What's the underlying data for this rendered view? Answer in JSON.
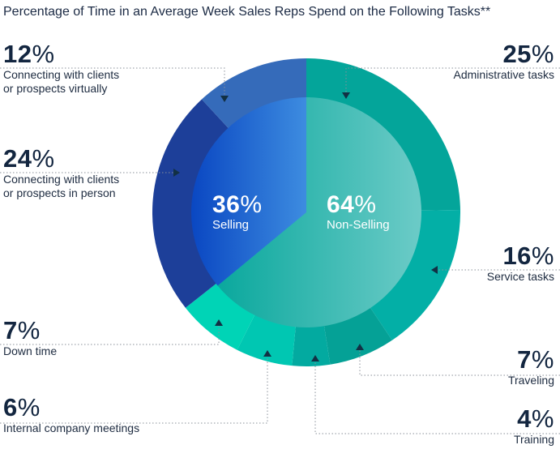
{
  "chart_data": {
    "type": "pie",
    "title": "Percentage of Time in an Average Week Sales Reps Spend on the Following Tasks**",
    "inner": [
      {
        "name": "Selling",
        "value": 36,
        "color_from": "#0a47c2",
        "color_to": "#3d8ce0"
      },
      {
        "name": "Non-Selling",
        "value": 64,
        "color_from": "#0aa89d",
        "color_to": "#6ccbc7"
      }
    ],
    "outer": [
      {
        "name": "Administrative tasks",
        "value": 25,
        "group": "Non-Selling",
        "color": "#04a59a"
      },
      {
        "name": "Service tasks",
        "value": 16,
        "group": "Non-Selling",
        "color": "#03afa6"
      },
      {
        "name": "Traveling",
        "value": 7,
        "group": "Non-Selling",
        "color": "#05a196"
      },
      {
        "name": "Training",
        "value": 4,
        "group": "Non-Selling",
        "color": "#03aaa0"
      },
      {
        "name": "Internal company meetings",
        "value": 6,
        "group": "Non-Selling",
        "color": "#00c7b2"
      },
      {
        "name": "Down time",
        "value": 7,
        "group": "Non-Selling",
        "color": "#00d4b6"
      },
      {
        "name": "Connecting with clients or prospects in person",
        "value": 24,
        "group": "Selling",
        "color": "#1d3f99"
      },
      {
        "name": "Connecting with clients or prospects virtually",
        "value": 12,
        "group": "Selling",
        "color": "#356bba"
      }
    ],
    "percent_sign": "%",
    "labels": {
      "virtual": {
        "value": "12",
        "line1": "Connecting with clients",
        "line2": "or prospects virtually"
      },
      "in_person": {
        "value": "24",
        "line1": "Connecting with clients",
        "line2": "or prospects in person"
      },
      "down_time": {
        "value": "7",
        "line1": "Down time"
      },
      "meetings": {
        "value": "6",
        "line1": "Internal company meetings"
      },
      "admin": {
        "value": "25",
        "line1": "Administrative tasks"
      },
      "service": {
        "value": "16",
        "line1": "Service tasks"
      },
      "traveling": {
        "value": "7",
        "line1": "Traveling"
      },
      "training": {
        "value": "4",
        "line1": "Training"
      },
      "selling": {
        "value": "36",
        "line1": "Selling"
      },
      "non_selling": {
        "value": "64",
        "line1": "Non-Selling"
      }
    }
  }
}
